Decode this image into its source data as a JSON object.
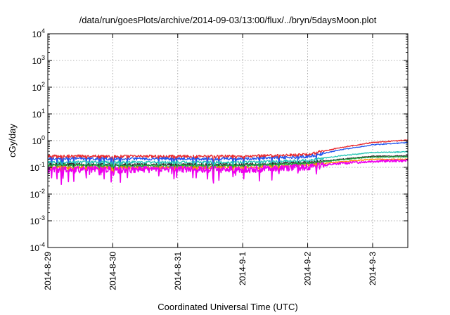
{
  "chart_data": {
    "type": "line",
    "title": "/data/run/goesPlots/archive/2014-09-03/13:00/flux/../bryn/5daysMoon.plot",
    "xlabel": "Coordinated Universal Time (UTC)",
    "ylabel": "cGy/day",
    "yscale": "log",
    "ylim": [
      0.0001,
      10000
    ],
    "y_ticks": [
      {
        "value": 0.0001,
        "base": "10",
        "exp": "-4"
      },
      {
        "value": 0.001,
        "base": "10",
        "exp": "-3"
      },
      {
        "value": 0.01,
        "base": "10",
        "exp": "-2"
      },
      {
        "value": 0.1,
        "base": "10",
        "exp": "-1"
      },
      {
        "value": 1,
        "base": "10",
        "exp": "0"
      },
      {
        "value": 10,
        "base": "10",
        "exp": "1"
      },
      {
        "value": 100,
        "base": "10",
        "exp": "2"
      },
      {
        "value": 1000,
        "base": "10",
        "exp": "3"
      },
      {
        "value": 10000,
        "base": "10",
        "exp": "4"
      }
    ],
    "xlim": [
      "2014-08-29 00:00",
      "2014-09-03 13:00"
    ],
    "x_ticks": [
      "2014-8-29",
      "2014-8-30",
      "2014-8-31",
      "2014-9-1",
      "2014-9-2",
      "2014-9-3"
    ],
    "x_tick_dates": [
      "2014-08-29",
      "2014-08-30",
      "2014-08-31",
      "2014-09-01",
      "2014-09-02",
      "2014-09-03"
    ],
    "grid": true,
    "legend": "none",
    "series": [
      {
        "color": "#e8262a",
        "values_by_date": [
          {
            "x": "2014-08-29",
            "y": 0.27
          },
          {
            "x": "2014-08-30",
            "y": 0.26
          },
          {
            "x": "2014-08-31",
            "y": 0.26
          },
          {
            "x": "2014-09-01",
            "y": 0.26
          },
          {
            "x": "2014-09-02",
            "y": 0.3
          },
          {
            "x": "2014-09-02 12:00",
            "y": 0.55
          },
          {
            "x": "2014-09-03",
            "y": 0.85
          },
          {
            "x": "2014-09-03 13:00",
            "y": 1.05
          }
        ]
      },
      {
        "color": "#2255ee",
        "values_by_date": [
          {
            "x": "2014-08-29",
            "y": 0.22
          },
          {
            "x": "2014-08-30",
            "y": 0.21
          },
          {
            "x": "2014-08-31",
            "y": 0.21
          },
          {
            "x": "2014-09-01",
            "y": 0.21
          },
          {
            "x": "2014-09-02",
            "y": 0.25
          },
          {
            "x": "2014-09-02 12:00",
            "y": 0.45
          },
          {
            "x": "2014-09-03",
            "y": 0.7
          },
          {
            "x": "2014-09-03 13:00",
            "y": 0.85
          }
        ]
      },
      {
        "color": "#22c4b4",
        "values_by_date": [
          {
            "x": "2014-08-29",
            "y": 0.16
          },
          {
            "x": "2014-08-30",
            "y": 0.155
          },
          {
            "x": "2014-08-31",
            "y": 0.155
          },
          {
            "x": "2014-09-01",
            "y": 0.155
          },
          {
            "x": "2014-09-02",
            "y": 0.18
          },
          {
            "x": "2014-09-02 12:00",
            "y": 0.27
          },
          {
            "x": "2014-09-03",
            "y": 0.36
          },
          {
            "x": "2014-09-03 13:00",
            "y": 0.38
          }
        ]
      },
      {
        "color": "#2a2a2a",
        "values_by_date": [
          {
            "x": "2014-08-29",
            "y": 0.13
          },
          {
            "x": "2014-08-30",
            "y": 0.125
          },
          {
            "x": "2014-08-31",
            "y": 0.125
          },
          {
            "x": "2014-09-01",
            "y": 0.125
          },
          {
            "x": "2014-09-02",
            "y": 0.15
          },
          {
            "x": "2014-09-02 12:00",
            "y": 0.2
          },
          {
            "x": "2014-09-03",
            "y": 0.26
          },
          {
            "x": "2014-09-03 13:00",
            "y": 0.27
          }
        ]
      },
      {
        "color": "#22aa44",
        "values_by_date": [
          {
            "x": "2014-08-29",
            "y": 0.12
          },
          {
            "x": "2014-08-30",
            "y": 0.115
          },
          {
            "x": "2014-08-31",
            "y": 0.115
          },
          {
            "x": "2014-09-01",
            "y": 0.115
          },
          {
            "x": "2014-09-02",
            "y": 0.14
          },
          {
            "x": "2014-09-02 12:00",
            "y": 0.19
          },
          {
            "x": "2014-09-03",
            "y": 0.24
          },
          {
            "x": "2014-09-03 13:00",
            "y": 0.25
          }
        ]
      },
      {
        "color": "#ff8800",
        "values_by_date": [
          {
            "x": "2014-08-29",
            "y": 0.1
          },
          {
            "x": "2014-08-30",
            "y": 0.098
          },
          {
            "x": "2014-08-31",
            "y": 0.098
          },
          {
            "x": "2014-09-01",
            "y": 0.098
          },
          {
            "x": "2014-09-02",
            "y": 0.12
          },
          {
            "x": "2014-09-02 12:00",
            "y": 0.16
          },
          {
            "x": "2014-09-03",
            "y": 0.2
          },
          {
            "x": "2014-09-03 13:00",
            "y": 0.2
          }
        ]
      },
      {
        "color": "#ee00ee",
        "values_by_date": [
          {
            "x": "2014-08-29",
            "y": 0.085
          },
          {
            "x": "2014-08-30",
            "y": 0.085
          },
          {
            "x": "2014-08-31",
            "y": 0.085
          },
          {
            "x": "2014-09-01",
            "y": 0.085
          },
          {
            "x": "2014-09-02",
            "y": 0.105
          },
          {
            "x": "2014-09-02 12:00",
            "y": 0.14
          },
          {
            "x": "2014-09-03",
            "y": 0.17
          },
          {
            "x": "2014-09-03 13:00",
            "y": 0.18
          }
        ]
      }
    ]
  }
}
